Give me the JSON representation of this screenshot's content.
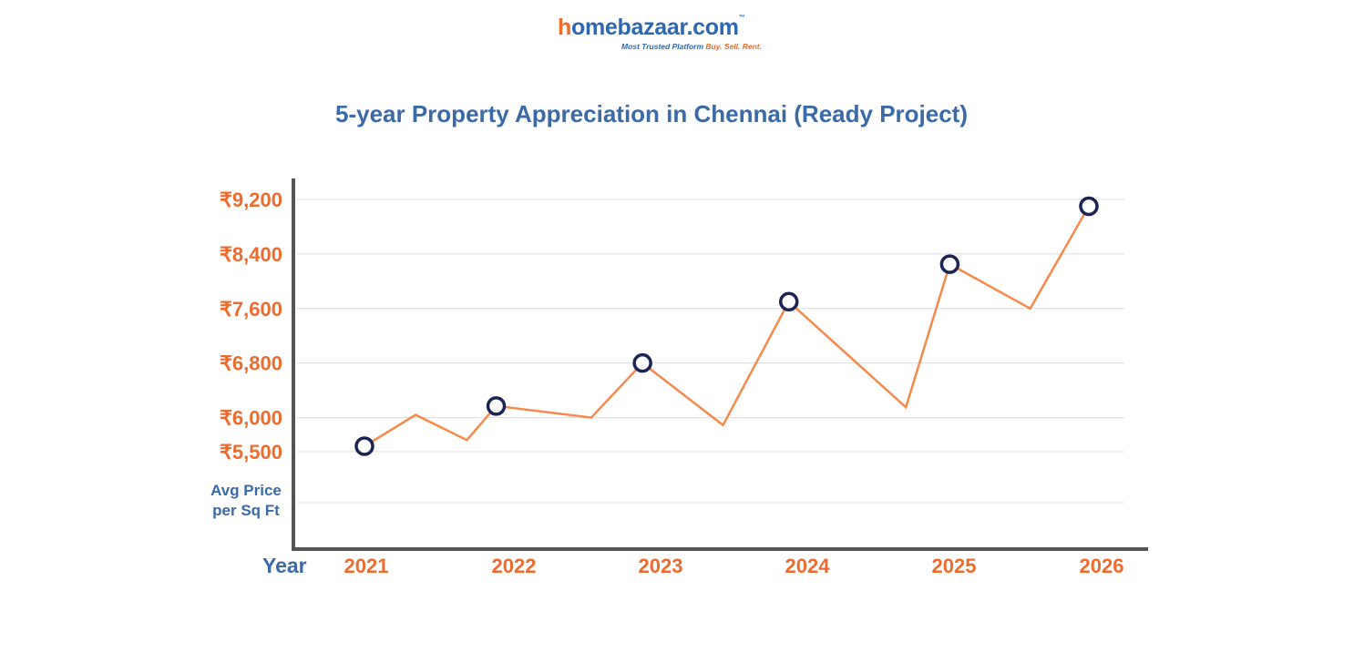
{
  "logo": {
    "brand_first": "h",
    "brand_rest": "omebazaar.com",
    "trademark": "™",
    "tagline_main": "Most Trusted Platform",
    "tagline_accent": "Buy. Sell. Rent."
  },
  "colors": {
    "brand_blue": "#2e67b1",
    "brand_orange": "#ec6b2d",
    "line": "#f58a4b",
    "marker": "#1c2454",
    "axis": "#555555",
    "grid": "#dcdcdc"
  },
  "chart_data": {
    "type": "line",
    "title": "5-year Property Appreciation in Chennai (Ready Project)",
    "xlabel": "Year",
    "ylabel_lines": [
      "Avg Price",
      "per Sq Ft"
    ],
    "x_ticks": [
      "2021",
      "2022",
      "2023",
      "2024",
      "2025",
      "2026"
    ],
    "y_ticks": [
      "₹9,200",
      "₹8,400",
      "₹7,600",
      "₹6,800",
      "₹6,000",
      "₹5,500"
    ],
    "y_tick_values": [
      9200,
      8400,
      7600,
      6800,
      6000,
      5500
    ],
    "ylim": [
      4900,
      9200
    ],
    "grid": true,
    "series": [
      {
        "x": [
          2021.0,
          2021.35,
          2021.7,
          2021.9,
          2022.55,
          2022.9,
          2023.45,
          2023.9,
          2024.7,
          2025.0,
          2025.55,
          2025.95
        ],
        "y": [
          5580,
          6040,
          5670,
          6170,
          6000,
          6800,
          5890,
          7700,
          6150,
          8250,
          7600,
          9100
        ]
      }
    ],
    "marker_points": [
      {
        "x": 2021.0,
        "y": 5580
      },
      {
        "x": 2021.9,
        "y": 6170
      },
      {
        "x": 2022.9,
        "y": 6800
      },
      {
        "x": 2023.9,
        "y": 7700
      },
      {
        "x": 2025.0,
        "y": 8250
      },
      {
        "x": 2025.95,
        "y": 9100
      }
    ]
  }
}
